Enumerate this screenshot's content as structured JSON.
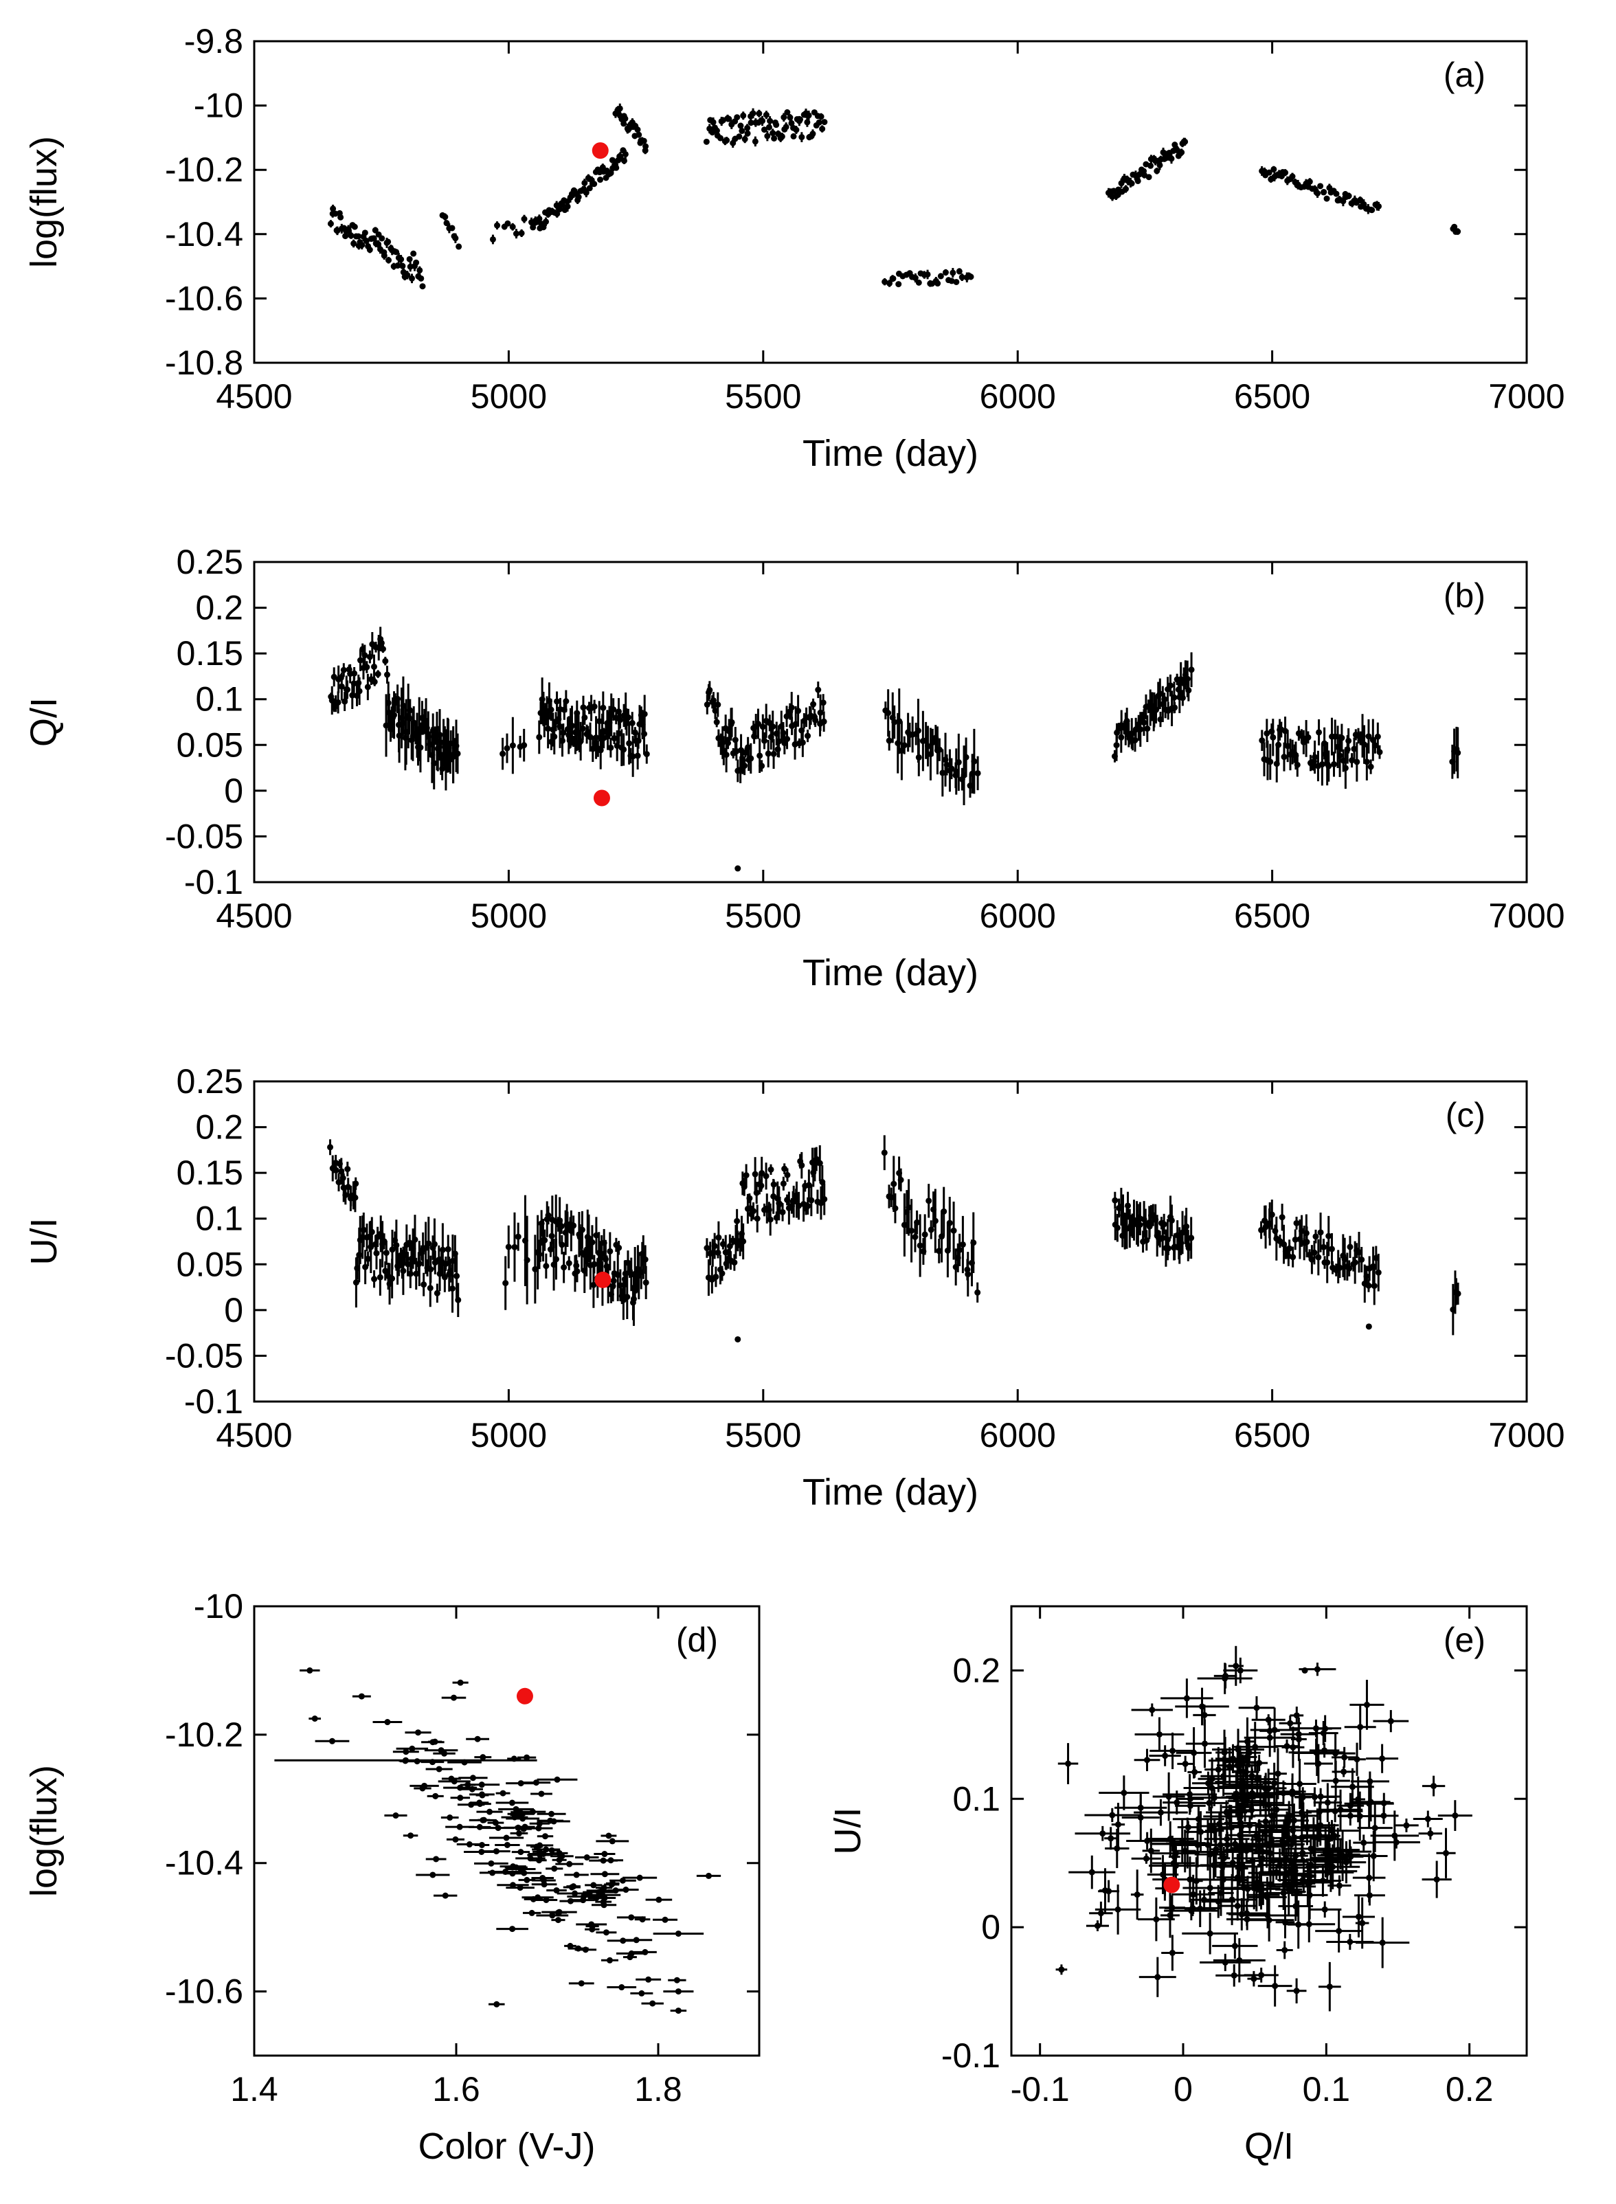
{
  "colors": {
    "points": "#000000",
    "highlight": "#ee1111",
    "axes": "#000000",
    "background": "#ffffff"
  },
  "chart_data": [
    {
      "id": "a",
      "type": "scatter",
      "tag": "(a)",
      "xlabel": "Time (day)",
      "ylabel": "log(flux)",
      "xlim": [
        4500,
        7000
      ],
      "ylim": [
        -10.8,
        -9.8
      ],
      "xticks": [
        4500,
        5000,
        5500,
        6000,
        6500,
        7000
      ],
      "xtick_labels": [
        "4500",
        "5000",
        "5500",
        "6000",
        "6500",
        "7000"
      ],
      "yticks": [
        -9.8,
        -10,
        -10.2,
        -10.4,
        -10.6,
        -10.8
      ],
      "ytick_labels": [
        "-9.8",
        "-10",
        "-10.2",
        "-10.4",
        "-10.6",
        "-10.8"
      ],
      "highlight": {
        "x": 5180,
        "y": -10.14
      },
      "segments": [
        {
          "x": [
            4650,
            4830
          ],
          "y0": -10.35,
          "y1": -10.52,
          "jitter": 0.09,
          "n": 65,
          "ex": 0,
          "ey": 0.008
        },
        {
          "x": [
            4870,
            4900
          ],
          "y0": -10.34,
          "y1": -10.42,
          "jitter": 0.04,
          "n": 8,
          "ex": 0,
          "ey": 0.008
        },
        {
          "x": [
            4970,
            5050
          ],
          "y0": -10.4,
          "y1": -10.36,
          "jitter": 0.05,
          "n": 10,
          "ex": 0,
          "ey": 0.008
        },
        {
          "x": [
            5050,
            5230
          ],
          "y0": -10.38,
          "y1": -10.15,
          "jitter": 0.05,
          "n": 60,
          "ex": 0,
          "ey": 0.008
        },
        {
          "x": [
            5210,
            5270
          ],
          "y0": -10.02,
          "y1": -10.12,
          "jitter": 0.05,
          "n": 25,
          "ex": 0,
          "ey": 0.008
        },
        {
          "x": [
            5390,
            5620
          ],
          "y0": -10.08,
          "y1": -10.05,
          "jitter": 0.09,
          "n": 75,
          "ex": 0,
          "ey": 0.008
        },
        {
          "x": [
            5740,
            5910
          ],
          "y0": -10.54,
          "y1": -10.53,
          "jitter": 0.04,
          "n": 30,
          "ex": 0,
          "ey": 0.008
        },
        {
          "x": [
            6180,
            6330
          ],
          "y0": -10.28,
          "y1": -10.12,
          "jitter": 0.05,
          "n": 48,
          "ex": 0,
          "ey": 0.008
        },
        {
          "x": [
            6480,
            6710
          ],
          "y0": -10.2,
          "y1": -10.33,
          "jitter": 0.04,
          "n": 55,
          "ex": 0,
          "ey": 0.008
        },
        {
          "x": [
            6855,
            6865
          ],
          "y0": -10.38,
          "y1": -10.4,
          "jitter": 0.02,
          "n": 4,
          "ex": 0,
          "ey": 0.008
        }
      ]
    },
    {
      "id": "b",
      "type": "scatter",
      "tag": "(b)",
      "xlabel": "Time (day)",
      "ylabel": "Q/I",
      "xlim": [
        4500,
        7000
      ],
      "ylim": [
        -0.1,
        0.25
      ],
      "xticks": [
        4500,
        5000,
        5500,
        6000,
        6500,
        7000
      ],
      "xtick_labels": [
        "4500",
        "5000",
        "5500",
        "6000",
        "6500",
        "7000"
      ],
      "yticks": [
        0.25,
        0.2,
        0.15,
        0.1,
        0.05,
        0,
        -0.05,
        -0.1
      ],
      "ytick_labels": [
        "0.25",
        "0.2",
        "0.15",
        "0.1",
        "0.05",
        "0",
        "-0.05",
        "-0.1"
      ],
      "highlight": {
        "x": 5183,
        "y": -0.008
      },
      "segments": [
        {
          "x": [
            4650,
            4760
          ],
          "y0": 0.11,
          "y1": 0.15,
          "jitter": 0.05,
          "n": 40,
          "ex": 0,
          "ey": 0.008
        },
        {
          "x": [
            4760,
            4900
          ],
          "y0": 0.09,
          "y1": 0.03,
          "jitter": 0.04,
          "n": 55,
          "ex": 0,
          "ey": 0.018
        },
        {
          "x": [
            4990,
            5030
          ],
          "y0": 0.05,
          "y1": 0.04,
          "jitter": 0.02,
          "n": 5,
          "ex": 0,
          "ey": 0.018
        },
        {
          "x": [
            5060,
            5270
          ],
          "y0": 0.08,
          "y1": 0.06,
          "jitter": 0.05,
          "n": 85,
          "ex": 0,
          "ey": 0.012
        },
        {
          "x": [
            5390,
            5460
          ],
          "y0": 0.1,
          "y1": 0.03,
          "jitter": 0.05,
          "n": 25,
          "ex": 0,
          "ey": 0.01
        },
        {
          "x": [
            5460,
            5620
          ],
          "y0": 0.04,
          "y1": 0.09,
          "jitter": 0.05,
          "n": 50,
          "ex": 0,
          "ey": 0.01
        },
        {
          "x": [
            5740,
            5920
          ],
          "y0": 0.07,
          "y1": 0.02,
          "jitter": 0.04,
          "n": 38,
          "ex": 0,
          "ey": 0.018
        },
        {
          "x": [
            6190,
            6340
          ],
          "y0": 0.05,
          "y1": 0.12,
          "jitter": 0.03,
          "n": 50,
          "ex": 0,
          "ey": 0.01
        },
        {
          "x": [
            6480,
            6710
          ],
          "y0": 0.05,
          "y1": 0.04,
          "jitter": 0.04,
          "n": 60,
          "ex": 0,
          "ey": 0.012
        },
        {
          "x": [
            6855,
            6865
          ],
          "y0": 0.03,
          "y1": 0.04,
          "jitter": 0.03,
          "n": 4,
          "ex": 0,
          "ey": 0.015
        }
      ],
      "extra_points": [
        {
          "x": 5450,
          "y": -0.085
        }
      ]
    },
    {
      "id": "c",
      "type": "scatter",
      "tag": "(c)",
      "xlabel": "Time (day)",
      "ylabel": "U/I",
      "xlim": [
        4500,
        7000
      ],
      "ylim": [
        -0.1,
        0.25
      ],
      "xticks": [
        4500,
        5000,
        5500,
        6000,
        6500,
        7000
      ],
      "xtick_labels": [
        "4500",
        "5000",
        "5500",
        "6000",
        "6500",
        "7000"
      ],
      "yticks": [
        0.25,
        0.2,
        0.15,
        0.1,
        0.05,
        0,
        -0.05,
        -0.1
      ],
      "ytick_labels": [
        "0.25",
        "0.2",
        "0.15",
        "0.1",
        "0.05",
        "0",
        "-0.05",
        "-0.1"
      ],
      "highlight": {
        "x": 5185,
        "y": 0.033
      },
      "segments": [
        {
          "x": [
            4650,
            4700
          ],
          "y0": 0.17,
          "y1": 0.12,
          "jitter": 0.04,
          "n": 18,
          "ex": 0,
          "ey": 0.008
        },
        {
          "x": [
            4700,
            4900
          ],
          "y0": 0.06,
          "y1": 0.04,
          "jitter": 0.06,
          "n": 70,
          "ex": 0,
          "ey": 0.015
        },
        {
          "x": [
            4990,
            5060
          ],
          "y0": 0.05,
          "y1": 0.07,
          "jitter": 0.05,
          "n": 8,
          "ex": 0,
          "ey": 0.025
        },
        {
          "x": [
            5060,
            5270
          ],
          "y0": 0.08,
          "y1": 0.03,
          "jitter": 0.06,
          "n": 80,
          "ex": 0,
          "ey": 0.015
        },
        {
          "x": [
            5390,
            5460
          ],
          "y0": 0.05,
          "y1": 0.08,
          "jitter": 0.05,
          "n": 25,
          "ex": 0,
          "ey": 0.01
        },
        {
          "x": [
            5460,
            5620
          ],
          "y0": 0.12,
          "y1": 0.14,
          "jitter": 0.06,
          "n": 55,
          "ex": 0,
          "ey": 0.01
        },
        {
          "x": [
            5740,
            5920
          ],
          "y0": 0.14,
          "y1": 0.04,
          "jitter": 0.07,
          "n": 35,
          "ex": 0,
          "ey": 0.018
        },
        {
          "x": [
            6190,
            6340
          ],
          "y0": 0.1,
          "y1": 0.08,
          "jitter": 0.04,
          "n": 50,
          "ex": 0,
          "ey": 0.012
        },
        {
          "x": [
            6480,
            6710
          ],
          "y0": 0.09,
          "y1": 0.04,
          "jitter": 0.04,
          "n": 55,
          "ex": 0,
          "ey": 0.012
        },
        {
          "x": [
            6855,
            6865
          ],
          "y0": 0.01,
          "y1": 0.02,
          "jitter": 0.02,
          "n": 4,
          "ex": 0,
          "ey": 0.015
        }
      ],
      "extra_points": [
        {
          "x": 5450,
          "y": -0.032
        },
        {
          "x": 6690,
          "y": -0.018
        }
      ]
    },
    {
      "id": "d",
      "type": "scatter",
      "tag": "(d)",
      "xlabel": "Color (V-J)",
      "ylabel": "log(flux)",
      "xlim": [
        1.4,
        1.9
      ],
      "ylim": [
        -10.7,
        -10.0
      ],
      "xticks": [
        1.4,
        1.6,
        1.8
      ],
      "xtick_labels": [
        "1.4",
        "1.6",
        "1.8"
      ],
      "yticks": [
        -10,
        -10.2,
        -10.4,
        -10.6
      ],
      "ytick_labels": [
        "-10",
        "-10.2",
        "-10.4",
        "-10.6"
      ],
      "highlight": {
        "x": 1.668,
        "y": -10.14
      },
      "trend": {
        "x": [
          1.57,
          1.78
        ],
        "y0": -10.25,
        "y1": -10.53,
        "jitter": 0.09,
        "n": 170,
        "ex": 0.012,
        "ey": 0.0
      },
      "extra_points": [
        {
          "x": 1.455,
          "y": -10.1,
          "ex": 0.01
        },
        {
          "x": 1.46,
          "y": -10.175,
          "ex": 0.006
        },
        {
          "x": 1.55,
          "y": -10.24,
          "ex": 0.13
        },
        {
          "x": 1.7,
          "y": -10.27,
          "ex": 0.02
        },
        {
          "x": 1.85,
          "y": -10.42,
          "ex": 0.012
        },
        {
          "x": 1.82,
          "y": -10.51,
          "ex": 0.025
        },
        {
          "x": 1.82,
          "y": -10.6,
          "ex": 0.015
        },
        {
          "x": 1.82,
          "y": -10.63,
          "ex": 0.008
        },
        {
          "x": 1.64,
          "y": -10.62,
          "ex": 0.008
        }
      ]
    },
    {
      "id": "e",
      "type": "scatter",
      "tag": "(e)",
      "xlabel": "Q/I",
      "ylabel": "U/I",
      "xlim": [
        -0.12,
        0.24
      ],
      "ylim": [
        -0.1,
        0.25
      ],
      "xticks": [
        -0.1,
        0,
        0.1,
        0.2
      ],
      "xtick_labels": [
        "-0.1",
        "0",
        "0.1",
        "0.2"
      ],
      "yticks": [
        0.2,
        0.1,
        0,
        -0.1
      ],
      "ytick_labels": [
        "0.2",
        "0.1",
        "0",
        "-0.1"
      ],
      "highlight": {
        "x": -0.008,
        "y": 0.033
      },
      "cloud": {
        "cx": 0.055,
        "cy": 0.07,
        "sx": 0.045,
        "sy": 0.045,
        "n": 330,
        "ex": 0.008,
        "ey": 0.008
      },
      "extra_points": [
        {
          "x": -0.085,
          "y": -0.033,
          "ex": 0.004,
          "ey": 0.004
        },
        {
          "x": 0.19,
          "y": 0.087,
          "ex": 0.012,
          "ey": 0.012
        },
        {
          "x": 0.175,
          "y": 0.11,
          "ex": 0.008,
          "ey": 0.008
        },
        {
          "x": 0.04,
          "y": 0.2,
          "ex": 0.012,
          "ey": 0.01
        },
        {
          "x": 0.085,
          "y": 0.2,
          "ex": 0.002,
          "ey": 0.002
        }
      ]
    }
  ]
}
